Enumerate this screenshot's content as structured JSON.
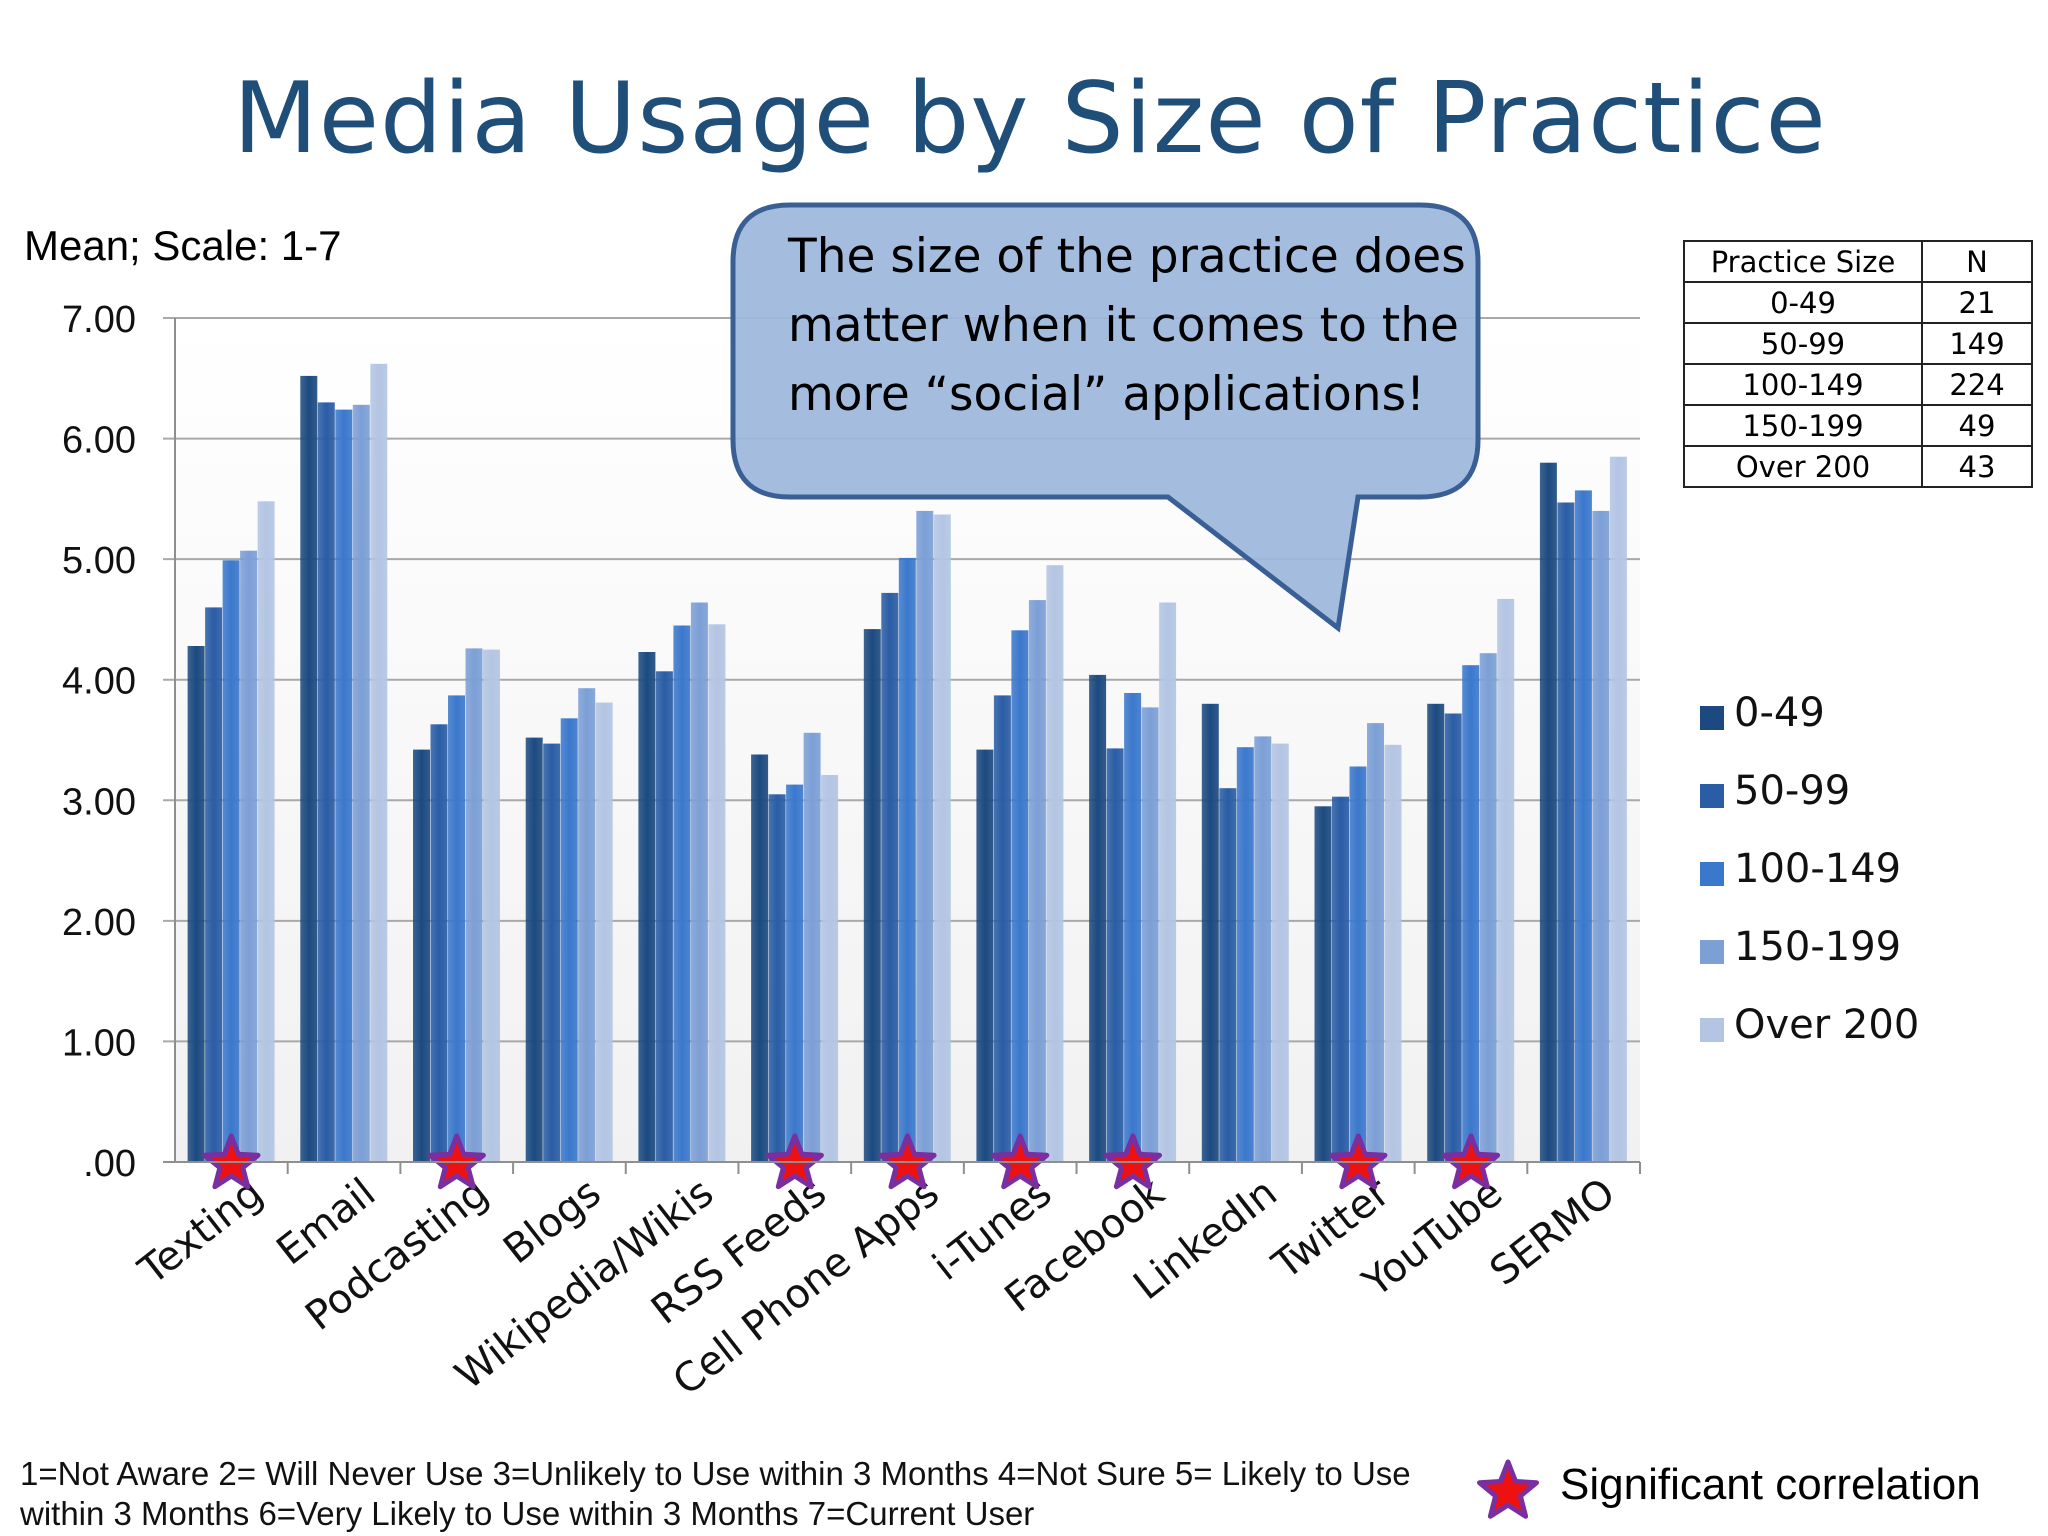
{
  "title": "Media Usage by Size of Practice",
  "scale_note": "Mean; Scale: 1-7",
  "callout": "The size of the practice does matter when it comes to the more “social” applications!",
  "table": {
    "headers": [
      "Practice Size",
      "N"
    ],
    "rows": [
      [
        "0-49",
        "21"
      ],
      [
        "50-99",
        "149"
      ],
      [
        "100-149",
        "224"
      ],
      [
        "150-199",
        "49"
      ],
      [
        "Over 200",
        "43"
      ]
    ]
  },
  "footnote": "1=Not Aware  2= Will Never Use  3=Unlikely to Use within 3 Months  4=Not Sure  5= Likely to Use within 3 Months  6=Very Likely to Use within 3 Months  7=Current User",
  "significance_label": "Significant correlation",
  "colors": {
    "title": "#1f4e79",
    "series": [
      "#1c4a80",
      "#2a5da5",
      "#3b78cc",
      "#7c9fd6",
      "#b3c5e3"
    ],
    "star_fill": "#ee1111",
    "star_stroke": "#7a2fa0",
    "callout_fill": "#9db8dd",
    "callout_stroke": "#3a5f95"
  },
  "chart_data": {
    "type": "bar",
    "categories": [
      "Texting",
      "Email",
      "Podcasting",
      "Blogs",
      "Wikipedia/Wikis",
      "RSS Feeds",
      "Cell Phone Apps",
      "i-Tunes",
      "Facebook",
      "LinkedIn",
      "Twitter",
      "YouTube",
      "SERMO"
    ],
    "series": [
      {
        "name": "0-49",
        "values": [
          4.28,
          6.52,
          3.42,
          3.52,
          4.23,
          3.38,
          4.42,
          3.42,
          4.04,
          3.8,
          2.95,
          3.8,
          5.8
        ]
      },
      {
        "name": "50-99",
        "values": [
          4.6,
          6.3,
          3.63,
          3.47,
          4.07,
          3.05,
          4.72,
          3.87,
          3.43,
          3.1,
          3.03,
          3.72,
          5.47
        ]
      },
      {
        "name": "100-149",
        "values": [
          4.99,
          6.24,
          3.87,
          3.68,
          4.45,
          3.13,
          5.01,
          4.41,
          3.89,
          3.44,
          3.28,
          4.12,
          5.57
        ]
      },
      {
        "name": "150-199",
        "values": [
          5.07,
          6.28,
          4.26,
          3.93,
          4.64,
          3.56,
          5.4,
          4.66,
          3.77,
          3.53,
          3.64,
          4.22,
          5.4
        ]
      },
      {
        "name": "Over 200",
        "values": [
          5.48,
          6.62,
          4.25,
          3.81,
          4.46,
          3.21,
          5.37,
          4.95,
          4.64,
          3.47,
          3.46,
          4.67,
          5.85
        ]
      }
    ],
    "significant": [
      "Texting",
      "Podcasting",
      "RSS Feeds",
      "Cell Phone Apps",
      "i-Tunes",
      "Facebook",
      "Twitter",
      "YouTube"
    ],
    "ylim": [
      0,
      7
    ],
    "yticks": [
      ".00",
      "1.00",
      "2.00",
      "3.00",
      "4.00",
      "5.00",
      "6.00",
      "7.00"
    ],
    "grid": true,
    "legend_position": "right"
  }
}
